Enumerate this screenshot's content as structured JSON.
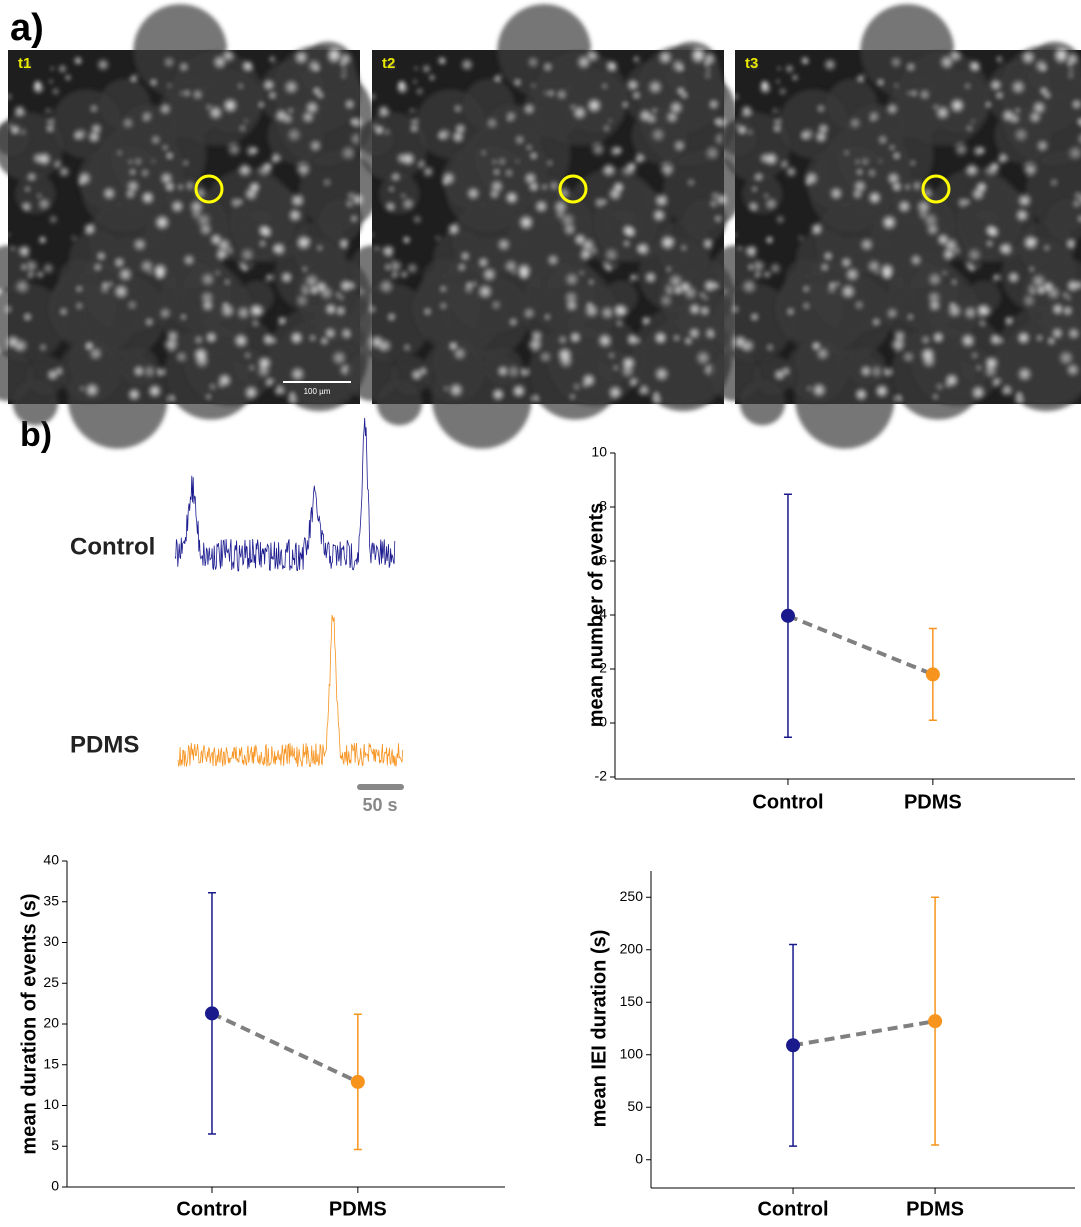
{
  "panel_labels": [
    "a)",
    "b)"
  ],
  "images": [
    {
      "label": "t1"
    },
    {
      "label": "t2"
    },
    {
      "label": "t3"
    }
  ],
  "scale_bar": "100 µm",
  "traces": {
    "labels": [
      "Control",
      "PDMS"
    ],
    "colors": [
      "#1c1c8f",
      "#f7931e"
    ],
    "scale": "50 s"
  },
  "chart_data": [
    {
      "type": "errorbar",
      "categories": [
        "Control",
        "PDMS"
      ],
      "values": [
        3.97,
        1.8
      ],
      "errors": [
        4.5,
        1.7
      ],
      "colors": [
        "#1a1a8c",
        "#f7941d"
      ],
      "ylabel": "mean number of events",
      "ylim": [
        -2,
        10
      ],
      "yticks": [
        -2,
        0,
        2,
        4,
        6,
        8,
        10
      ],
      "connector_color": "#808080"
    },
    {
      "type": "errorbar",
      "categories": [
        "Control",
        "PDMS"
      ],
      "values": [
        21.3,
        12.9
      ],
      "errors": [
        14.8,
        8.3
      ],
      "colors": [
        "#1a1a8c",
        "#f7941d"
      ],
      "ylabel": "mean duration of events (s)",
      "ylim": [
        0,
        40
      ],
      "yticks": [
        0,
        5,
        10,
        15,
        20,
        25,
        30,
        35,
        40
      ],
      "connector_color": "#808080"
    },
    {
      "type": "errorbar",
      "categories": [
        "Control",
        "PDMS"
      ],
      "values": [
        109,
        132
      ],
      "errors": [
        96,
        118
      ],
      "colors": [
        "#1a1a8c",
        "#f7941d"
      ],
      "ylabel": "mean IEI duration (s)",
      "ylim": [
        -25,
        275
      ],
      "yticks": [
        0,
        50,
        100,
        150,
        200,
        250
      ],
      "connector_color": "#808080"
    }
  ]
}
